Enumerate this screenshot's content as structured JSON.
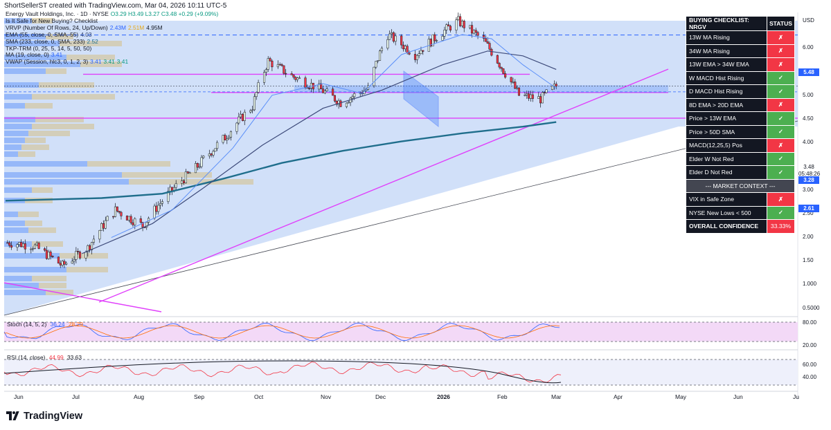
{
  "top_info": "ShortSellerST created with TradingView.com, Mar 04, 2026 10:11 UTC-5",
  "legend": [
    {
      "label": "Energy Vault Holdings, Inc. · 1D · NYSE",
      "values": [
        {
          "t": "O3.29 H3.49 L3.27 C3.48 +0.29 (+9.09%)",
          "c": "#089981"
        }
      ]
    },
    {
      "label": "Is It Safe for New Buying? Checklist",
      "values": []
    },
    {
      "label": "VRVP (Number Of Rows, 24, Up/Down)",
      "values": [
        {
          "t": "2.43M",
          "c": "#2962ff"
        },
        {
          "t": "2.51M",
          "c": "#e6a817"
        },
        {
          "t": "4.95M",
          "c": "#131722"
        }
      ]
    },
    {
      "label": "EMA (55, close, 0, SMA, 55)",
      "values": [
        {
          "t": "4.03",
          "c": "#2a3d6e"
        }
      ]
    },
    {
      "label": "SMA (233, close, 0, SMA, 233)",
      "values": [
        {
          "t": "2.52",
          "c": "#1f6e8c"
        }
      ]
    },
    {
      "label": "TKP-TRM (0, 25, 5, 14, 5, 50, 50)",
      "values": []
    },
    {
      "label": "MA (19, close, 0)",
      "values": [
        {
          "t": "3.41",
          "c": "#2962ff"
        }
      ]
    },
    {
      "label": "VWAP (Session, hlc3, 0, 1, 2, 3)",
      "values": [
        {
          "t": "3.41",
          "c": "#2962ff"
        },
        {
          "t": "3.41",
          "c": "#089981"
        },
        {
          "t": "3.41",
          "c": "#089981"
        }
      ]
    }
  ],
  "checklist": {
    "header": "BUYING CHECKLIST: NRGV",
    "status_header": "STATUS",
    "rows": [
      {
        "label": "13W MA Rising",
        "status": "✗",
        "pass": false
      },
      {
        "label": "34W MA Rising",
        "status": "✗",
        "pass": false
      },
      {
        "label": "13W EMA > 34W EMA",
        "status": "✗",
        "pass": false
      },
      {
        "label": "W MACD Hist Rising",
        "status": "✓",
        "pass": true
      },
      {
        "label": "D MACD Hist Rising",
        "status": "✓",
        "pass": true
      },
      {
        "label": "8D EMA > 20D EMA",
        "status": "✗",
        "pass": false
      },
      {
        "label": "Price > 13W EMA",
        "status": "✓",
        "pass": true
      },
      {
        "label": "Price > 50D SMA",
        "status": "✓",
        "pass": true
      },
      {
        "label": "MACD(12,25,5) Pos",
        "status": "✗",
        "pass": false
      },
      {
        "label": "Elder W Not Red",
        "status": "✓",
        "pass": true
      },
      {
        "label": "Elder D Not Red",
        "status": "✓",
        "pass": true
      }
    ],
    "context_header": "--- MARKET CONTEXT ---",
    "context_rows": [
      {
        "label": "VIX in Safe Zone",
        "status": "✗",
        "pass": false
      },
      {
        "label": "NYSE New Lows < 500",
        "status": "✓",
        "pass": true
      }
    ],
    "confidence_label": "OVERALL CONFIDENCE",
    "confidence_value": "33.33%"
  },
  "currency": "USD",
  "price_ticks": [
    "6.00",
    "5.00",
    "4.50",
    "4.00",
    "3.00",
    "2.50",
    "2.00",
    "1.50",
    "1.000",
    "0.5000"
  ],
  "price_badges": [
    {
      "text": "5.48",
      "value": 5.48,
      "color": "#2962ff"
    },
    {
      "text": "3.48",
      "value": 3.48,
      "color": "#ffffff"
    },
    {
      "text": "05:48:26",
      "value": 3.48,
      "color": "#ffffff"
    },
    {
      "text": "3.28",
      "value": 3.28,
      "color": "#2962ff"
    },
    {
      "text": "2.61",
      "value": 2.61,
      "color": "#2962ff"
    }
  ],
  "x_ticks": [
    {
      "t": "Jun",
      "bold": false
    },
    {
      "t": "Jul",
      "bold": false
    },
    {
      "t": "Aug",
      "bold": false
    },
    {
      "t": "Sep",
      "bold": false
    },
    {
      "t": "Oct",
      "bold": false
    },
    {
      "t": "Nov",
      "bold": false
    },
    {
      "t": "Dec",
      "bold": false
    },
    {
      "t": "2026",
      "bold": true
    },
    {
      "t": "Feb",
      "bold": false
    },
    {
      "t": "Mar",
      "bold": false
    },
    {
      "t": "Apr",
      "bold": false
    },
    {
      "t": "May",
      "bold": false
    },
    {
      "t": "Jun",
      "bold": false
    },
    {
      "t": "Ju",
      "bold": false
    }
  ],
  "stoch": {
    "label": "Stoch (14, 5, 2)",
    "k": "36.24",
    "d": "28.29",
    "ticks": [
      "80.00",
      "20.00"
    ]
  },
  "rsi": {
    "label": "RSI (14, close)",
    "rsi": "44.99",
    "ma": "33.63",
    "ticks": [
      "60.00",
      "40.00"
    ]
  },
  "footer_brand": "TradingView",
  "chart_data": {
    "type": "candlestick",
    "symbol": "NRGV",
    "timeframe": "1D",
    "x_range": [
      "2025-05-27",
      "2026-07-01"
    ],
    "price_ylim_log": [
      0.45,
      6.7
    ],
    "candles_sampled_close": [
      {
        "date": "2025-05-28",
        "close": 0.86
      },
      {
        "date": "2025-06-10",
        "close": 0.84
      },
      {
        "date": "2025-06-25",
        "close": 0.7
      },
      {
        "date": "2025-07-08",
        "close": 0.82
      },
      {
        "date": "2025-07-22",
        "close": 1.15
      },
      {
        "date": "2025-08-05",
        "close": 1.0
      },
      {
        "date": "2025-08-19",
        "close": 1.35
      },
      {
        "date": "2025-09-02",
        "close": 1.7
      },
      {
        "date": "2025-09-16",
        "close": 2.2
      },
      {
        "date": "2025-09-30",
        "close": 2.9
      },
      {
        "date": "2025-10-08",
        "close": 4.35
      },
      {
        "date": "2025-10-20",
        "close": 3.8
      },
      {
        "date": "2025-11-03",
        "close": 3.4
      },
      {
        "date": "2025-11-14",
        "close": 3.0
      },
      {
        "date": "2025-11-28",
        "close": 3.4
      },
      {
        "date": "2025-12-08",
        "close": 5.5
      },
      {
        "date": "2025-12-22",
        "close": 4.6
      },
      {
        "date": "2026-01-06",
        "close": 5.7
      },
      {
        "date": "2026-01-13",
        "close": 6.2
      },
      {
        "date": "2026-01-26",
        "close": 5.2
      },
      {
        "date": "2026-02-05",
        "close": 4.0
      },
      {
        "date": "2026-02-13",
        "close": 3.2
      },
      {
        "date": "2026-02-24",
        "close": 3.1
      },
      {
        "date": "2026-03-04",
        "close": 3.48
      }
    ],
    "horizontal_levels": [
      5.48,
      3.86,
      3.28,
      2.61
    ],
    "ema55_last": 4.03,
    "sma233_last": 2.52,
    "stoch_k_last": 36.24,
    "stoch_d_last": 28.29,
    "rsi_last": 44.99,
    "rsi_ma_last": 33.63
  }
}
